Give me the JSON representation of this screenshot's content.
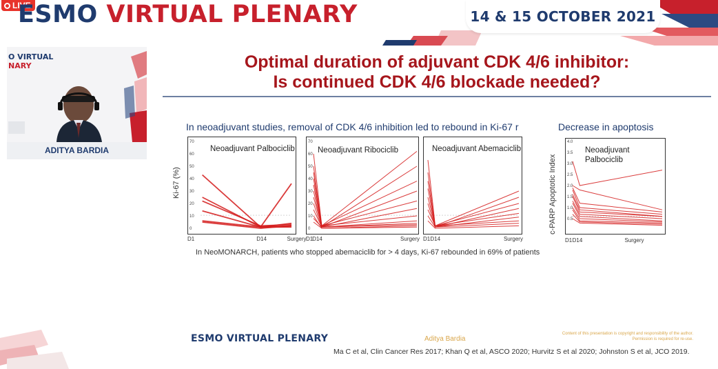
{
  "header": {
    "live_label": "LIVE",
    "banner_esmo": "ESMO",
    "banner_virtual_plenary": "VIRTUAL PLENARY",
    "date": "14 & 15 OCTOBER 2021"
  },
  "speaker": {
    "logo_line1": "O VIRTUAL",
    "logo_line2": "NARY",
    "name": "ADITYA BARDIA"
  },
  "slide": {
    "title_line1": "Optimal duration of adjuvant CDK 4/6 inhibitor:",
    "title_line2": "Is continued CDK 4/6 blockade needed?",
    "subhead_left": "In neoadjuvant studies, removal of CDK 4/6 inhibition led to rebound in Ki-67 r",
    "subhead_right": "Decrease in apoptosis",
    "footnote": "In NeoMONARCH, patients who stopped abemaciclib for > 4 days, Ki-67 rebounded in 69% of patients",
    "footer_logo_esmo": "ESMO",
    "footer_logo_vp": "VIRTUAL PLENARY",
    "footer_speaker": "Aditya Bardia",
    "footer_copyright_line1": "Content of this presentation is copyright and responsibility of the author.",
    "footer_copyright_line2": "Permission is required for re-use.",
    "references": "Ma C et al, Clin Cancer Res 2017; Khan Q et al, ASCO 2020; Hurvitz S et al 2020; Johnston S et al, JCO 2019."
  },
  "chart_data": [
    {
      "type": "line",
      "title": "Neoadjuvant Palbociclib",
      "ylabel": "Ki-67 (%)",
      "x": [
        "D1",
        "D14",
        "Surgery"
      ],
      "y_ticks": [
        "0",
        "10",
        "20",
        "30",
        "40",
        "50",
        "60",
        "70"
      ],
      "ylim": [
        0,
        70
      ],
      "color": "#d41a1a",
      "series": [
        {
          "values": [
            43,
            1,
            36
          ]
        },
        {
          "values": [
            25,
            1,
            4
          ]
        },
        {
          "values": [
            22,
            2,
            3
          ]
        },
        {
          "values": [
            14,
            1,
            2
          ]
        },
        {
          "values": [
            6,
            1,
            1
          ]
        },
        {
          "values": [
            5,
            0,
            2
          ]
        }
      ]
    },
    {
      "type": "line",
      "title": "Neoadjuvant Ribociclib",
      "x": [
        "D1",
        "D14",
        "Surgery"
      ],
      "y_ticks": [
        "0",
        "10",
        "20",
        "30",
        "40",
        "50",
        "60",
        "70"
      ],
      "ylim": [
        0,
        70
      ],
      "color": "#d41a1a",
      "series": [
        {
          "values": [
            60,
            2,
            62
          ]
        },
        {
          "values": [
            50,
            1,
            50
          ]
        },
        {
          "values": [
            45,
            2,
            38
          ]
        },
        {
          "values": [
            40,
            1,
            30
          ]
        },
        {
          "values": [
            35,
            2,
            22
          ]
        },
        {
          "values": [
            30,
            1,
            16
          ]
        },
        {
          "values": [
            25,
            2,
            10
          ]
        },
        {
          "values": [
            20,
            1,
            6
          ]
        },
        {
          "values": [
            15,
            1,
            4
          ]
        },
        {
          "values": [
            10,
            0,
            2
          ]
        },
        {
          "values": [
            8,
            1,
            3
          ]
        },
        {
          "values": [
            5,
            0,
            1
          ]
        }
      ]
    },
    {
      "type": "line",
      "title": "Neoadjuvant Abemaciclib",
      "x": [
        "D1",
        "D14",
        "Surgery"
      ],
      "ylim": [
        0,
        70
      ],
      "color": "#d41a1a",
      "series": [
        {
          "values": [
            55,
            2,
            30
          ]
        },
        {
          "values": [
            45,
            1,
            25
          ]
        },
        {
          "values": [
            38,
            2,
            20
          ]
        },
        {
          "values": [
            32,
            1,
            16
          ]
        },
        {
          "values": [
            25,
            2,
            12
          ]
        },
        {
          "values": [
            20,
            1,
            9
          ]
        },
        {
          "values": [
            15,
            2,
            6
          ]
        },
        {
          "values": [
            10,
            1,
            4
          ]
        },
        {
          "values": [
            6,
            0,
            2
          ]
        }
      ]
    },
    {
      "type": "line",
      "title": "Neoadjuvant Palbociclib",
      "ylabel": "c-PARP Apoptotic Index",
      "x": [
        "D1",
        "D14",
        "Surgery"
      ],
      "y_ticks": [
        "0.5",
        "1.0",
        "1.5",
        "2.0",
        "2.5",
        "3.0",
        "3.5",
        "4.0"
      ],
      "ylim": [
        0,
        4.0
      ],
      "color": "#d41a1a",
      "series": [
        {
          "values": [
            3.1,
            2.0,
            2.7
          ]
        },
        {
          "values": [
            2.0,
            1.8,
            0.9
          ]
        },
        {
          "values": [
            1.9,
            1.2,
            0.8
          ]
        },
        {
          "values": [
            1.8,
            1.0,
            0.7
          ]
        },
        {
          "values": [
            1.6,
            0.9,
            0.6
          ]
        },
        {
          "values": [
            1.5,
            0.8,
            0.6
          ]
        },
        {
          "values": [
            1.3,
            0.7,
            0.5
          ]
        },
        {
          "values": [
            1.2,
            0.6,
            0.4
          ]
        },
        {
          "values": [
            1.0,
            0.5,
            0.35
          ]
        },
        {
          "values": [
            0.9,
            0.4,
            0.3
          ]
        },
        {
          "values": [
            0.7,
            0.35,
            0.25
          ]
        },
        {
          "values": [
            0.5,
            0.3,
            0.2
          ]
        }
      ]
    }
  ]
}
